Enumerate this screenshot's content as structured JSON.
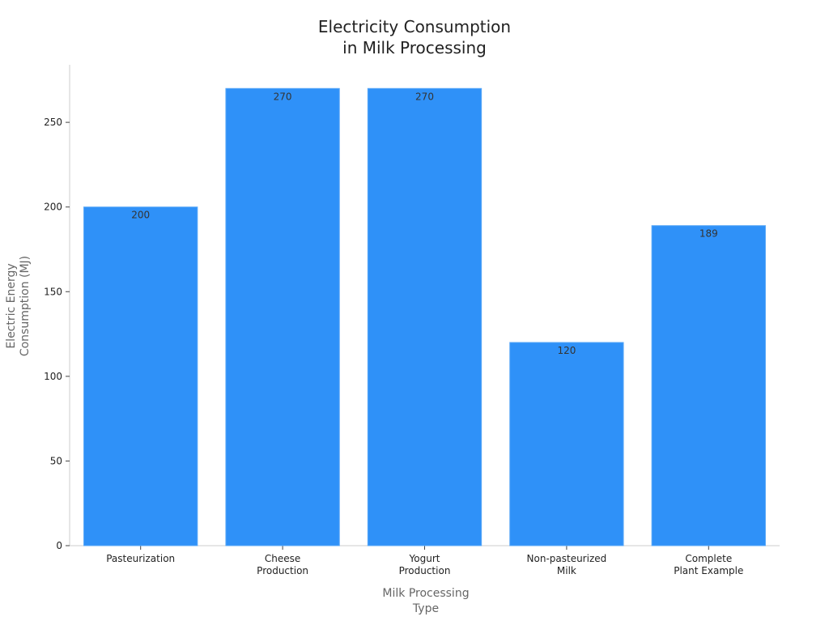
{
  "chart_data": {
    "type": "bar",
    "title": [
      "Electricity Consumption",
      "in Milk Processing"
    ],
    "xlabel": [
      "Milk Processing",
      "Type"
    ],
    "ylabel": [
      "Electric Energy",
      "Consumption (MJ)"
    ],
    "categories": [
      [
        "Pasteurization"
      ],
      [
        "Cheese",
        "Production"
      ],
      [
        "Yogurt",
        "Production"
      ],
      [
        "Non-pasteurized",
        "Milk"
      ],
      [
        "Complete",
        "Plant Example"
      ]
    ],
    "values": [
      200,
      270,
      270,
      120,
      189
    ],
    "data_labels": [
      "200",
      "270",
      "270",
      "120",
      "189"
    ],
    "ylim": [
      0,
      284
    ],
    "yticks": [
      0,
      50,
      100,
      150,
      200,
      250
    ],
    "ytick_labels": [
      "0",
      "50",
      "100",
      "150",
      "200",
      "250"
    ],
    "grid": false,
    "legend": "none",
    "colors": {
      "bar": "#2f91f8",
      "bar_edge": "#5aa8f7",
      "axis": "#cccccc",
      "tick_text": "#222222",
      "label_text": "#666666",
      "title_text": "#222222",
      "data_label_text": "#333333"
    }
  }
}
